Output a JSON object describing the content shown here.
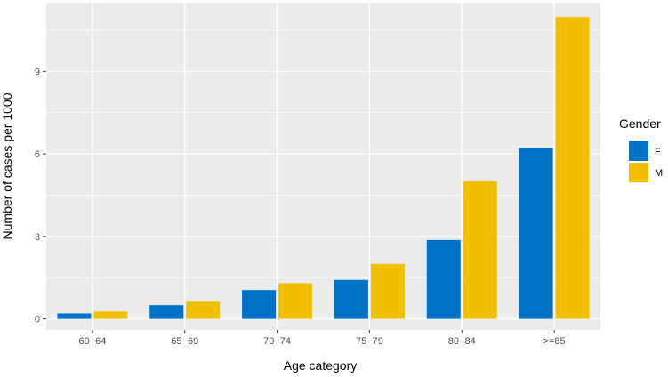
{
  "chart_data": {
    "type": "bar",
    "xlabel": "Age category",
    "ylabel": "Number of cases per 1000",
    "categories": [
      "60−64",
      "65−69",
      "70−74",
      "75−79",
      "80−84",
      ">=85"
    ],
    "series": [
      {
        "name": "F",
        "color": "#0072c6",
        "values": [
          0.2,
          0.5,
          1.05,
          1.42,
          2.87,
          6.22
        ]
      },
      {
        "name": "M",
        "color": "#f0c000",
        "values": [
          0.27,
          0.63,
          1.3,
          2.0,
          5.0,
          10.98
        ]
      }
    ],
    "ylim": [
      -0.4,
      11.5
    ],
    "yticks": [
      0,
      3,
      6,
      9
    ],
    "ytick_labels": [
      "0",
      "3",
      "6",
      "9"
    ],
    "grid": true,
    "panel_background": "#ebebeb",
    "legend": {
      "title": "Gender",
      "position": "right",
      "labels": [
        "F",
        "M"
      ]
    }
  }
}
